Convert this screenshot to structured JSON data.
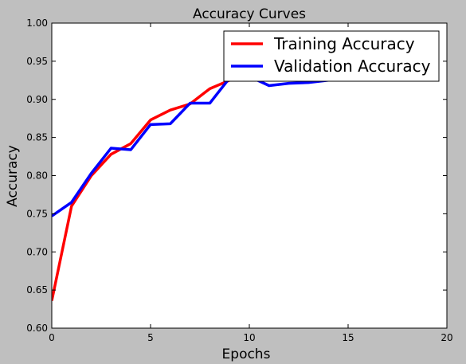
{
  "chart_data": {
    "type": "line",
    "title": "Accuracy Curves",
    "xlabel": "Epochs",
    "ylabel": "Accuracy",
    "xlim": [
      0,
      20
    ],
    "ylim": [
      0.6,
      1.0
    ],
    "xticks": [
      0,
      5,
      10,
      15,
      20
    ],
    "yticks": [
      0.6,
      0.65,
      0.7,
      0.75,
      0.8,
      0.85,
      0.9,
      0.95,
      1.0
    ],
    "xtick_labels": [
      "0",
      "5",
      "10",
      "15",
      "20"
    ],
    "ytick_labels": [
      "0.60",
      "0.65",
      "0.70",
      "0.75",
      "0.80",
      "0.85",
      "0.90",
      "0.95",
      "1.00"
    ],
    "grid": false,
    "legend_position": "top-right",
    "series": [
      {
        "name": "Training Accuracy",
        "color": "#ff0000",
        "x": [
          0,
          1,
          2,
          3,
          4,
          5,
          6,
          7,
          8,
          9,
          10,
          11,
          12,
          13,
          14,
          15,
          16,
          17,
          18,
          19
        ],
        "values": [
          0.636,
          0.76,
          0.8,
          0.828,
          0.842,
          0.873,
          0.886,
          0.894,
          0.914,
          0.925,
          0.932,
          0.936,
          0.94,
          0.944,
          0.946,
          0.948,
          0.95,
          0.952,
          0.953,
          0.954
        ]
      },
      {
        "name": "Validation Accuracy",
        "color": "#0000ff",
        "x": [
          0,
          1,
          2,
          3,
          4,
          5,
          6,
          7,
          8,
          9,
          10,
          11,
          12,
          13,
          14,
          15,
          16,
          17,
          18,
          19
        ],
        "values": [
          0.747,
          0.765,
          0.803,
          0.836,
          0.834,
          0.867,
          0.868,
          0.895,
          0.895,
          0.928,
          0.93,
          0.918,
          0.921,
          0.922,
          0.925,
          0.927,
          0.928,
          0.929,
          0.93,
          0.931
        ]
      }
    ]
  }
}
